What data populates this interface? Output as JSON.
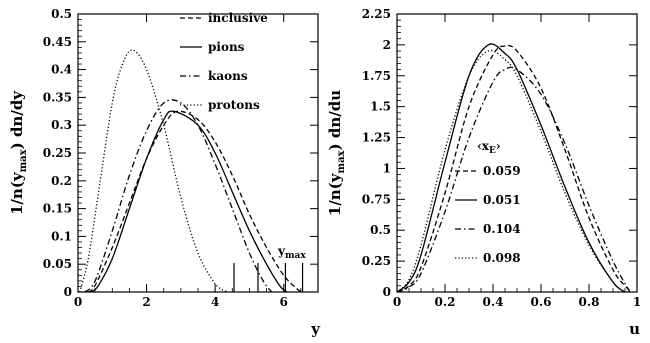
{
  "chart_data": [
    {
      "type": "line",
      "xlabel": "y",
      "ylabel": "1/n(y_max) dn/dy",
      "ylabel_parts": [
        "1/n(y",
        "max",
        ") dn/dy"
      ],
      "xlim": [
        0,
        7
      ],
      "ylim": [
        0,
        0.5
      ],
      "x_ticks": [
        "0",
        "2",
        "4",
        "6"
      ],
      "y_ticks": [
        "0",
        "0.05",
        "0.1",
        "0.15",
        "0.2",
        "0.25",
        "0.3",
        "0.35",
        "0.4",
        "0.45",
        "0.5"
      ],
      "legend_position": "top-right",
      "series": [
        {
          "name": "inclusive",
          "dash": "dashed",
          "x": [
            0.3,
            0.5,
            1.0,
            1.5,
            2.0,
            2.5,
            2.9,
            3.5,
            4.0,
            4.5,
            5.0,
            5.5,
            6.0,
            6.4,
            6.55
          ],
          "y": [
            0.0,
            0.012,
            0.08,
            0.16,
            0.24,
            0.3,
            0.325,
            0.31,
            0.27,
            0.21,
            0.14,
            0.08,
            0.03,
            0.005,
            0.0
          ]
        },
        {
          "name": "pions",
          "dash": "solid",
          "x": [
            0.4,
            0.6,
            1.0,
            1.5,
            2.0,
            2.5,
            2.8,
            3.5,
            4.0,
            4.5,
            5.0,
            5.5,
            5.9,
            6.1
          ],
          "y": [
            0.0,
            0.012,
            0.06,
            0.15,
            0.24,
            0.31,
            0.325,
            0.3,
            0.25,
            0.18,
            0.11,
            0.05,
            0.01,
            0.0
          ]
        },
        {
          "name": "kaons",
          "dash": "dashdot",
          "x": [
            0.2,
            0.5,
            1.0,
            1.5,
            2.0,
            2.5,
            3.0,
            3.5,
            4.0,
            4.5,
            5.0,
            5.4,
            5.65
          ],
          "y": [
            0.0,
            0.02,
            0.11,
            0.21,
            0.29,
            0.34,
            0.34,
            0.3,
            0.23,
            0.15,
            0.07,
            0.02,
            0.0
          ]
        },
        {
          "name": "protons",
          "dash": "dotted",
          "x": [
            0.05,
            0.3,
            0.6,
            1.0,
            1.3,
            1.6,
            2.0,
            2.5,
            3.0,
            3.5,
            4.0,
            4.35
          ],
          "y": [
            0.0,
            0.06,
            0.18,
            0.34,
            0.41,
            0.435,
            0.4,
            0.3,
            0.17,
            0.07,
            0.015,
            0.0
          ]
        }
      ],
      "ymax_markers": [
        4.55,
        5.25,
        6.05,
        6.55
      ],
      "annotation": {
        "main": "y",
        "sub": "max"
      }
    },
    {
      "type": "line",
      "xlabel": "u",
      "ylabel": "1/n(y_max) dn/du",
      "ylabel_parts": [
        "1/n(y",
        "max",
        ") dn/du"
      ],
      "xlim": [
        0,
        1
      ],
      "ylim": [
        0,
        2.25
      ],
      "x_ticks": [
        "0",
        "0.2",
        "0.4",
        "0.6",
        "0.8",
        "1"
      ],
      "y_ticks": [
        "0",
        "0.25",
        "0.5",
        "0.75",
        "1",
        "1.25",
        "1.5",
        "1.75",
        "2",
        "2.25"
      ],
      "legend_title": {
        "main": "‹x",
        "sub": "E",
        "close": "›"
      },
      "legend_position": "middle-left",
      "series": [
        {
          "name": "0.059",
          "dash": "dashed",
          "x": [
            0.0,
            0.05,
            0.1,
            0.2,
            0.3,
            0.4,
            0.45,
            0.5,
            0.6,
            0.7,
            0.8,
            0.9,
            0.95,
            0.98
          ],
          "y": [
            0.0,
            0.05,
            0.2,
            0.8,
            1.5,
            1.92,
            1.99,
            1.95,
            1.65,
            1.15,
            0.6,
            0.18,
            0.05,
            0.0
          ]
        },
        {
          "name": "0.051",
          "dash": "solid",
          "x": [
            0.0,
            0.05,
            0.1,
            0.2,
            0.3,
            0.38,
            0.45,
            0.5,
            0.6,
            0.7,
            0.8,
            0.9,
            0.95
          ],
          "y": [
            0.0,
            0.08,
            0.3,
            1.05,
            1.75,
            2.0,
            1.93,
            1.8,
            1.35,
            0.85,
            0.4,
            0.08,
            0.0
          ]
        },
        {
          "name": "0.104",
          "dash": "dashdot",
          "x": [
            0.0,
            0.05,
            0.1,
            0.2,
            0.3,
            0.4,
            0.45,
            0.5,
            0.6,
            0.7,
            0.8,
            0.9,
            0.97
          ],
          "y": [
            0.0,
            0.04,
            0.15,
            0.65,
            1.25,
            1.7,
            1.8,
            1.8,
            1.6,
            1.2,
            0.7,
            0.25,
            0.0
          ]
        },
        {
          "name": "0.098",
          "dash": "dotted",
          "x": [
            0.0,
            0.05,
            0.1,
            0.2,
            0.3,
            0.38,
            0.45,
            0.5,
            0.6,
            0.7,
            0.8,
            0.9,
            0.95
          ],
          "y": [
            0.0,
            0.1,
            0.38,
            1.15,
            1.75,
            1.95,
            1.88,
            1.75,
            1.3,
            0.8,
            0.38,
            0.08,
            0.0
          ]
        }
      ]
    }
  ]
}
